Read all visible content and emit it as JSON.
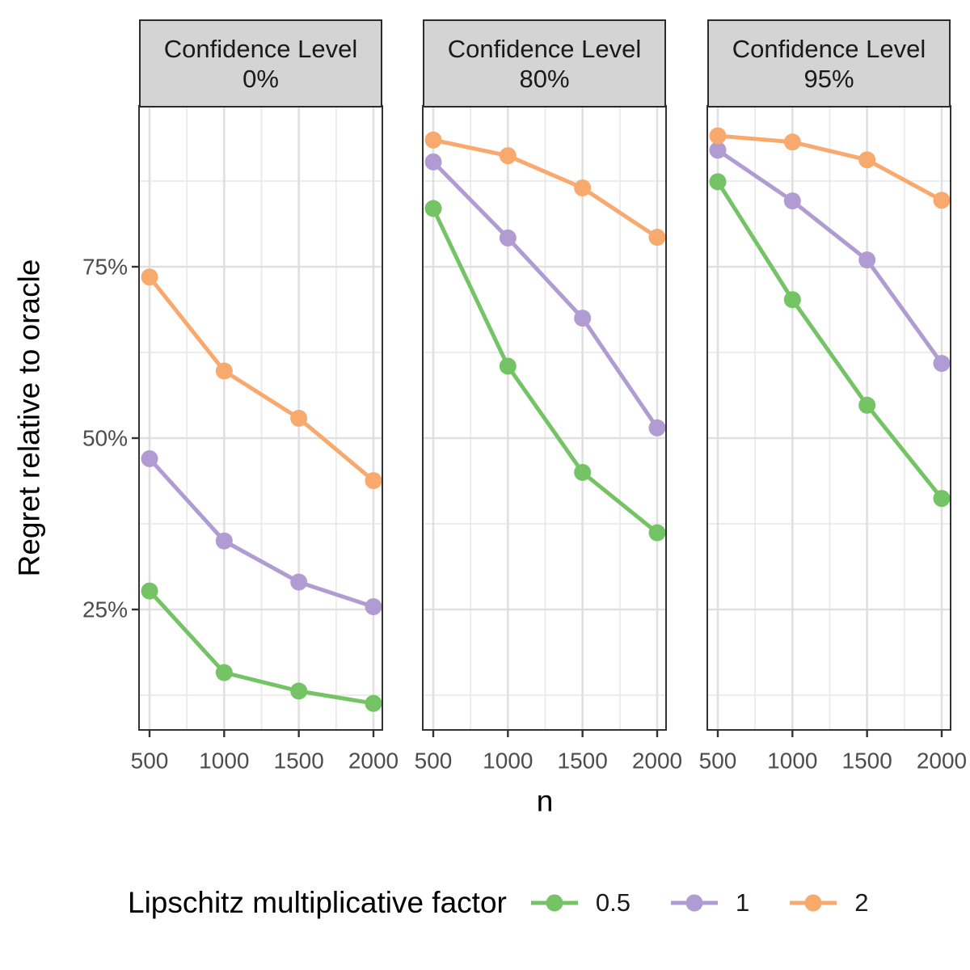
{
  "chart_data": {
    "type": "line",
    "title": "",
    "xlabel": "n",
    "ylabel": "Regret relative to oracle",
    "x": [
      500,
      1000,
      1500,
      2000
    ],
    "x_tick_labels": [
      "500",
      "1000",
      "1500",
      "2000"
    ],
    "x_minor_ticks": [
      750,
      1250,
      1750
    ],
    "y_ticks": [
      25,
      50,
      75
    ],
    "y_tick_labels": [
      "25%",
      "50%",
      "75%"
    ],
    "y_minor_ticks": [
      12.5,
      37.5,
      62.5,
      87.5
    ],
    "ylim": [
      7.4,
      98.5
    ],
    "grid": true,
    "unit": "percent",
    "facets": [
      {
        "strip_line1": "Confidence Level",
        "strip_line2": "0%",
        "series": [
          {
            "name": "0.5",
            "color": "#74C365",
            "values": [
              27.7,
              15.8,
              13.1,
              11.3
            ]
          },
          {
            "name": "1",
            "color": "#B09CD2",
            "values": [
              47.0,
              35.0,
              29.0,
              25.4
            ]
          },
          {
            "name": "2",
            "color": "#F8A96E",
            "values": [
              73.5,
              59.8,
              52.9,
              43.8
            ]
          }
        ]
      },
      {
        "strip_line1": "Confidence Level",
        "strip_line2": "80%",
        "series": [
          {
            "name": "0.5",
            "color": "#74C365",
            "values": [
              83.5,
              60.5,
              45.0,
              36.2
            ]
          },
          {
            "name": "1",
            "color": "#B09CD2",
            "values": [
              90.3,
              79.2,
              67.5,
              51.5
            ]
          },
          {
            "name": "2",
            "color": "#F8A96E",
            "values": [
              93.5,
              91.2,
              86.5,
              79.3
            ]
          }
        ]
      },
      {
        "strip_line1": "Confidence Level",
        "strip_line2": "95%",
        "series": [
          {
            "name": "0.5",
            "color": "#74C365",
            "values": [
              87.4,
              70.2,
              54.8,
              41.2
            ]
          },
          {
            "name": "1",
            "color": "#B09CD2",
            "values": [
              92.0,
              84.6,
              76.0,
              60.9
            ]
          },
          {
            "name": "2",
            "color": "#F8A96E",
            "values": [
              94.1,
              93.2,
              90.6,
              84.7
            ]
          }
        ]
      }
    ],
    "legend": {
      "title": "Lipschitz multiplicative factor",
      "position": "bottom",
      "entries": [
        {
          "label": "0.5",
          "color": "#74C365"
        },
        {
          "label": "1",
          "color": "#B09CD2"
        },
        {
          "label": "2",
          "color": "#F8A96E"
        }
      ]
    },
    "colors": {
      "background": "#FFFFFF",
      "panel_background": "#FFFFFF",
      "strip_fill": "#D4D4D4",
      "strip_border": "#2B2B2B",
      "strip_text": "#1A1A1A",
      "panel_border": "#333333",
      "grid_major": "#E0E0E0",
      "grid_minor": "#EAEAEA",
      "tick_mark": "#333333",
      "tick_label": "#4D4D4D",
      "axis_title": "#000000"
    }
  }
}
